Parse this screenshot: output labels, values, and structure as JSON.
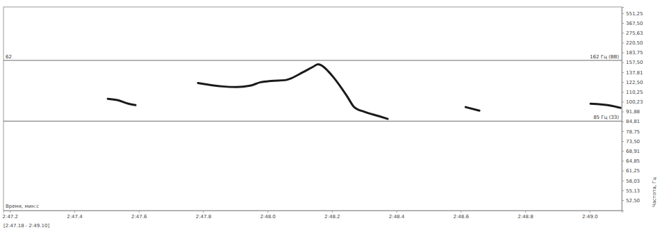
{
  "chart_data": {
    "type": "line",
    "x_label": "Время, мин:с",
    "y_label": "Частота, Гц",
    "range_label": "[2:47.18 - 2:49.10]",
    "xlim": [
      167.18,
      169.1
    ],
    "xticks": [
      {
        "value": 167.2,
        "label": "2:47.2"
      },
      {
        "value": 167.4,
        "label": "2:47.4"
      },
      {
        "value": 167.6,
        "label": "2:47.6"
      },
      {
        "value": 167.8,
        "label": "2:47.8"
      },
      {
        "value": 168.0,
        "label": "2:48.0"
      },
      {
        "value": 168.2,
        "label": "2:48.2"
      },
      {
        "value": 168.4,
        "label": "2:48.4"
      },
      {
        "value": 168.6,
        "label": "2:48.6"
      },
      {
        "value": 168.8,
        "label": "2:48.8"
      },
      {
        "value": 169.0,
        "label": "2:49.0"
      }
    ],
    "ylim": [
      50,
      800
    ],
    "yticks": [
      {
        "value": 551.25,
        "label": "551,25"
      },
      {
        "value": 367.5,
        "label": "367,50"
      },
      {
        "value": 275.63,
        "label": "275,63"
      },
      {
        "value": 220.5,
        "label": "220,50"
      },
      {
        "value": 183.75,
        "label": "183,75"
      },
      {
        "value": 157.5,
        "label": "157,50"
      },
      {
        "value": 137.81,
        "label": "137,81"
      },
      {
        "value": 122.5,
        "label": "122,50"
      },
      {
        "value": 110.25,
        "label": "110,25"
      },
      {
        "value": 100.23,
        "label": "100,23"
      },
      {
        "value": 91.88,
        "label": "91,88"
      },
      {
        "value": 84.81,
        "label": "84,81"
      },
      {
        "value": 78.75,
        "label": "78,75"
      },
      {
        "value": 73.5,
        "label": "73,50"
      },
      {
        "value": 68.91,
        "label": "68,91"
      },
      {
        "value": 64.85,
        "label": "64,85"
      },
      {
        "value": 61.25,
        "label": "61,25"
      },
      {
        "value": 58.03,
        "label": "58,03"
      },
      {
        "value": 55.13,
        "label": "55,13"
      },
      {
        "value": 52.5,
        "label": "52,50"
      }
    ],
    "grid": false,
    "annotations": [
      {
        "value": 162,
        "label": "162 Гц (ВВ)",
        "left_label": "62"
      },
      {
        "value": 85,
        "label": "85 Гц (ЗЗ)"
      }
    ],
    "series": [
      {
        "color": "#1a1a1a",
        "line_style": "solid",
        "x": [
          167.504,
          167.536,
          167.568,
          167.59
        ],
        "values": [
          103.0,
          101.6,
          98.4,
          97.2
        ]
      },
      {
        "color": "#1a1a1a",
        "line_style": "solid",
        "x": [
          167.784,
          167.86,
          167.903,
          167.946,
          167.978,
          168.011,
          168.054,
          168.075,
          168.108,
          168.14,
          168.157,
          168.172,
          168.188,
          168.205,
          168.226,
          168.248,
          168.269,
          168.302,
          168.345,
          168.373
        ],
        "values": [
          121.2,
          116.7,
          115.9,
          117.6,
          122.2,
          124.1,
          125.1,
          128.2,
          137.1,
          147.4,
          153.2,
          148.8,
          139.6,
          129.2,
          116.7,
          105.0,
          95.5,
          91.6,
          88.5,
          86.5
        ]
      },
      {
        "color": "#1a1a1a",
        "line_style": "solid",
        "x": [
          168.615,
          168.658
        ],
        "values": [
          95.5,
          92.6
        ]
      },
      {
        "color": "#1a1a1a",
        "line_style": "solid",
        "x": [
          169.003,
          169.068,
          169.096
        ],
        "values": [
          98.4,
          96.6,
          94.9
        ]
      }
    ]
  }
}
